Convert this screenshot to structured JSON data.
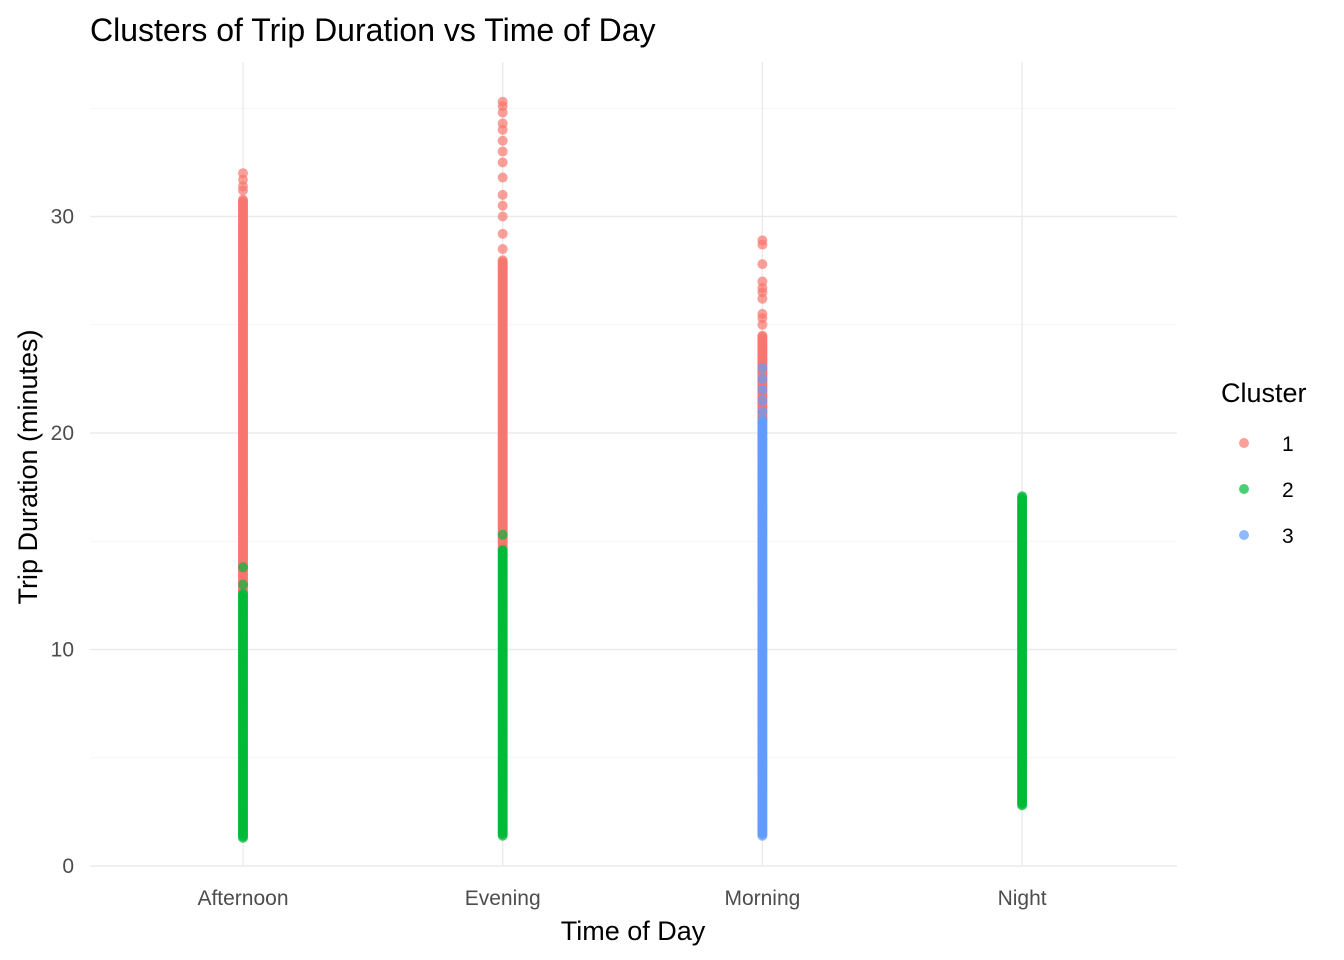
{
  "chart_data": {
    "type": "scatter",
    "title": "Clusters of Trip Duration vs Time of Day",
    "xlabel": "Time of Day",
    "ylabel": "Trip Duration (minutes)",
    "categories": [
      "Afternoon",
      "Evening",
      "Morning",
      "Night"
    ],
    "ylim": [
      0,
      36
    ],
    "yticks": [
      0,
      10,
      20,
      30
    ],
    "grid": true,
    "legend": {
      "title": "Cluster",
      "position": "right"
    },
    "series": [
      {
        "name": "1",
        "color": "#F8766D",
        "ranges": [
          {
            "category": "Afternoon",
            "min": 12.6,
            "max": 30.8
          },
          {
            "category": "Evening",
            "min": 14.6,
            "max": 28.0
          },
          {
            "category": "Morning",
            "min": 20.6,
            "max": 24.5
          }
        ],
        "outliers": [
          {
            "category": "Afternoon",
            "y": [
              31.2,
              31.4,
              31.7,
              32.0
            ]
          },
          {
            "category": "Evening",
            "y": [
              28.5,
              29.2,
              30.0,
              30.5,
              31.0,
              31.8,
              32.5,
              33.0,
              33.5,
              34.0,
              34.3,
              34.8,
              35.1,
              35.3
            ]
          },
          {
            "category": "Morning",
            "y": [
              25.0,
              25.3,
              25.5,
              26.2,
              26.5,
              26.7,
              27.0,
              27.8,
              28.7,
              28.9
            ]
          }
        ]
      },
      {
        "name": "2",
        "color": "#00BA38",
        "ranges": [
          {
            "category": "Afternoon",
            "min": 1.3,
            "max": 12.6
          },
          {
            "category": "Evening",
            "min": 1.4,
            "max": 14.6
          },
          {
            "category": "Night",
            "min": 2.8,
            "max": 17.1
          }
        ],
        "outliers": [
          {
            "category": "Afternoon",
            "y": [
              13.0,
              13.8
            ]
          },
          {
            "category": "Evening",
            "y": [
              15.3
            ]
          }
        ]
      },
      {
        "name": "3",
        "color": "#619CFF",
        "ranges": [
          {
            "category": "Morning",
            "min": 1.4,
            "max": 20.6
          }
        ],
        "outliers": [
          {
            "category": "Morning",
            "y": [
              21.0,
              21.5,
              22.0,
              22.5,
              23.0
            ]
          }
        ]
      }
    ]
  }
}
